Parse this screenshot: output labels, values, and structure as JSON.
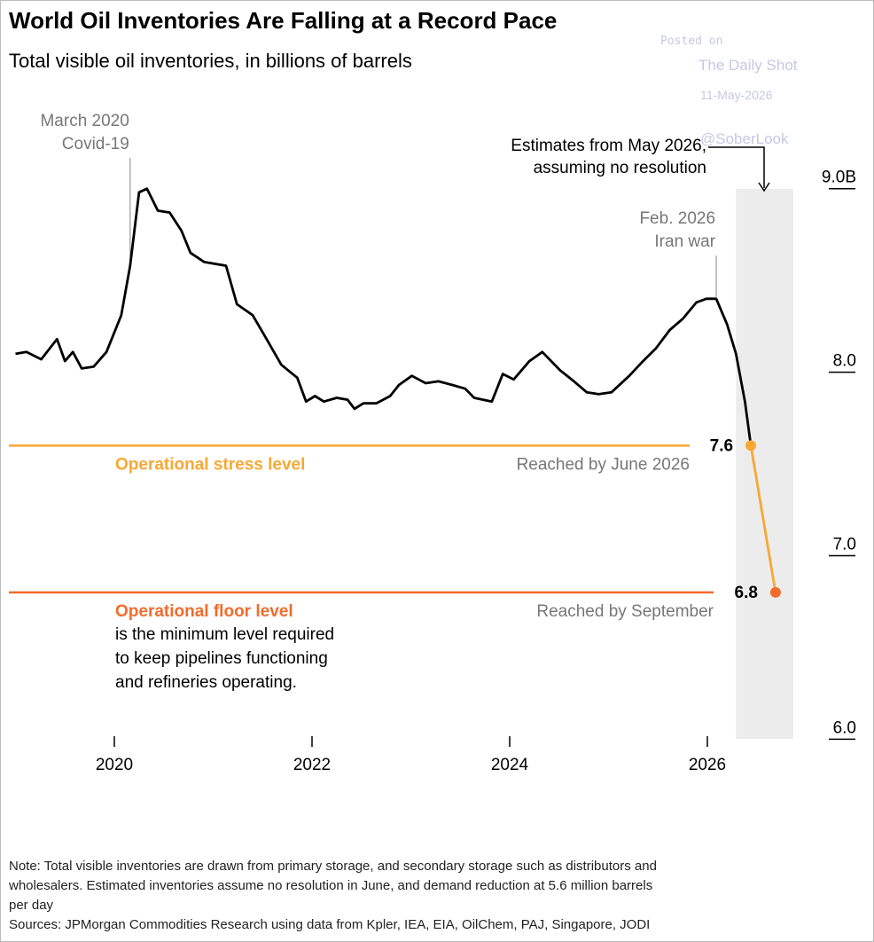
{
  "chart_data": {
    "type": "line",
    "title": "World Oil Inventories Are Falling at a Record Pace",
    "subtitle": "Total visible oil inventories, in billions of barrels",
    "xlim": [
      2019,
      2027
    ],
    "xticks": [
      2020,
      2022,
      2024,
      2026
    ],
    "ylim": [
      5.9,
      9.1
    ],
    "yticks": [
      {
        "value": 6,
        "label": "6.0"
      },
      {
        "value": 7,
        "label": "7.0"
      },
      {
        "value": 8,
        "label": "8.0"
      },
      {
        "value": 9,
        "label": "9.0B"
      }
    ],
    "series": [
      {
        "color": "#000000",
        "x": [
          2019.0,
          2019.11,
          2019.26,
          2019.42,
          2019.5,
          2019.58,
          2019.67,
          2019.79,
          2019.92,
          2020.07,
          2020.16,
          2020.25,
          2020.33,
          2020.44,
          2020.56,
          2020.68,
          2020.77,
          2020.91,
          2021.13,
          2021.24,
          2021.4,
          2021.53,
          2021.69,
          2021.85,
          2021.94,
          2022.03,
          2022.12,
          2022.25,
          2022.36,
          2022.43,
          2022.52,
          2022.65,
          2022.79,
          2022.88,
          2023.01,
          2023.15,
          2023.28,
          2023.42,
          2023.55,
          2023.64,
          2023.82,
          2023.93,
          2024.04,
          2024.2,
          2024.33,
          2024.51,
          2024.65,
          2024.78,
          2024.9,
          2025.03,
          2025.21,
          2025.35,
          2025.48,
          2025.62,
          2025.75,
          2025.89,
          2025.99,
          2026.09,
          2026.2,
          2026.29,
          2026.38,
          2026.44
        ],
        "values": [
          8.1,
          8.11,
          8.07,
          8.18,
          8.06,
          8.11,
          8.02,
          8.03,
          8.11,
          8.31,
          8.58,
          8.98,
          9.0,
          8.88,
          8.87,
          8.77,
          8.65,
          8.6,
          8.58,
          8.37,
          8.31,
          8.19,
          8.04,
          7.97,
          7.84,
          7.87,
          7.84,
          7.86,
          7.85,
          7.8,
          7.83,
          7.83,
          7.87,
          7.93,
          7.98,
          7.94,
          7.95,
          7.93,
          7.91,
          7.86,
          7.84,
          7.99,
          7.96,
          8.06,
          8.11,
          8.01,
          7.95,
          7.89,
          7.88,
          7.89,
          7.98,
          8.06,
          8.13,
          8.23,
          8.29,
          8.38,
          8.4,
          8.4,
          8.26,
          8.1,
          7.84,
          7.6
        ]
      },
      {
        "color": "#f7a833",
        "marker_colors": [
          "#f7a833",
          "#f26b2b"
        ],
        "x": [
          2026.44,
          2026.69
        ],
        "values": [
          7.6,
          6.8
        ]
      }
    ],
    "forecast_span": [
      2026.29,
      2026.87
    ],
    "reference_lines": [
      {
        "value": 7.6,
        "color": "#f7a833",
        "label": "Operational stress level",
        "note": "Reached by June 2026"
      },
      {
        "value": 6.8,
        "color": "#f26b2b",
        "label": "Operational floor level",
        "note": "Reached by September",
        "description": [
          "is the minimum level required",
          "to keep pipelines functioning",
          "and refineries operating."
        ]
      }
    ],
    "annotations": [
      {
        "x": 2020.16,
        "lines": [
          "March 2020",
          "Covid-19"
        ]
      },
      {
        "x": 2026.09,
        "lines": [
          "Feb. 2026",
          "Iran war"
        ]
      }
    ],
    "forecast_note": [
      "Estimates from May 2026,",
      "assuming no resolution"
    ],
    "note": [
      "Note: Total visible inventories are drawn from primary storage, and secondary storage such as distributors and",
      "wholesalers. Estimated inventories assume no resolution in June, and demand reduction at 5.6 million barrels",
      "per day"
    ],
    "sources": "Sources: JPMorgan Commodities Research using data from Kpler, IEA, EIA, OilChem, PAJ, Singapore, JODI"
  },
  "watermark": {
    "posted": "Posted on",
    "site": "The Daily Shot",
    "date": "11-May-2026",
    "handle": "@SoberLook"
  }
}
